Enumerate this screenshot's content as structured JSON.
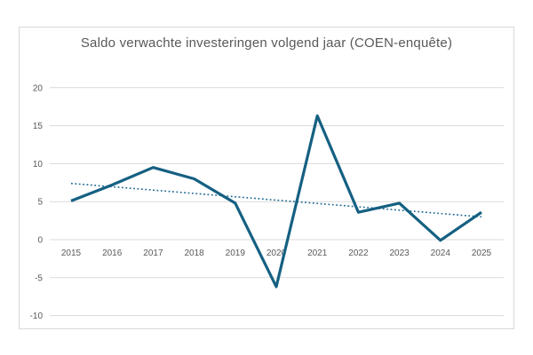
{
  "chart_data": {
    "type": "line",
    "title": "Saldo verwachte investeringen volgend jaar (COEN-enquête)",
    "categories": [
      "2015",
      "2016",
      "2017",
      "2018",
      "2019",
      "2020",
      "2021",
      "2022",
      "2023",
      "2024",
      "2025"
    ],
    "series": [
      {
        "name": "saldo-verwachte-investeringen",
        "style": "solid",
        "values": [
          5.1,
          7.2,
          9.5,
          8.0,
          4.8,
          -6.2,
          16.3,
          3.6,
          4.8,
          -0.1,
          3.6
        ]
      },
      {
        "name": "lineaire-trendlijn",
        "style": "dotted",
        "values": [
          7.4,
          6.96,
          6.52,
          6.08,
          5.64,
          5.2,
          4.76,
          4.32,
          3.88,
          3.44,
          3.0
        ]
      }
    ],
    "xlabel": "",
    "ylabel": "",
    "ylim": [
      -10,
      20
    ],
    "yticks": [
      20,
      15,
      10,
      5,
      0,
      -5,
      -10
    ],
    "grid": true,
    "legend": "none"
  },
  "colors": {
    "line": "#156082",
    "trend": "#1d6a94",
    "grid": "#d9d9d9",
    "border": "#d9d9d9",
    "text": "#595959",
    "background": "#ffffff"
  }
}
